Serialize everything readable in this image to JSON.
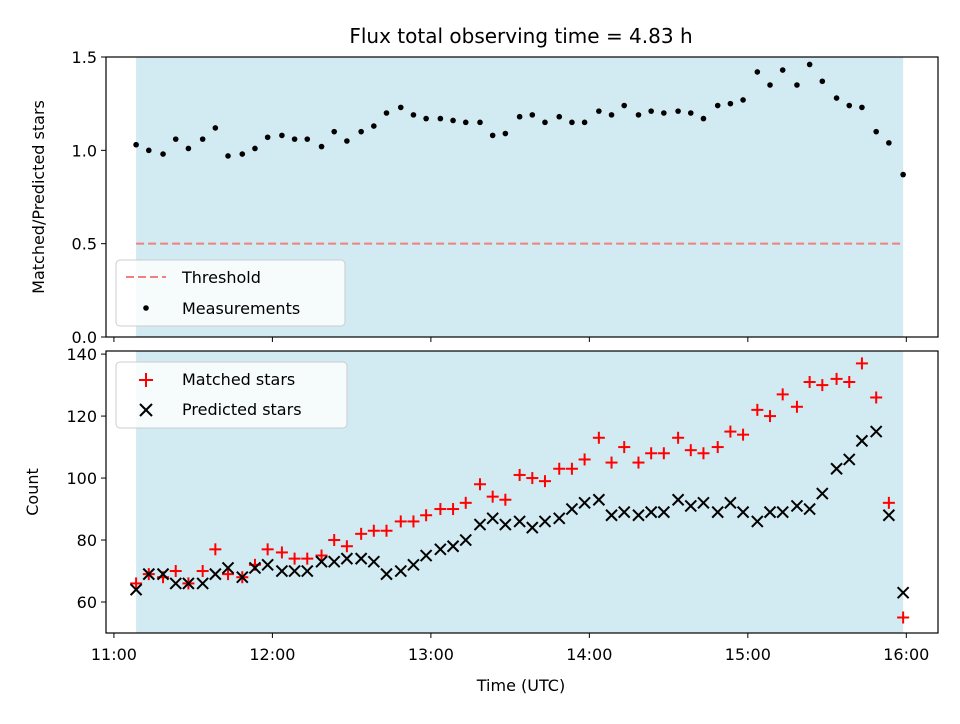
{
  "chart_data": [
    {
      "type": "scatter",
      "title": "Flux total observing time = 4.83 h",
      "ylabel": "Matched/Predicted stars",
      "xlabel": "",
      "ylim": [
        0,
        1.5
      ],
      "yticks": [
        0.0,
        0.5,
        1.0,
        1.5
      ],
      "ytick_labels": [
        "0.0",
        "0.5",
        "1.0",
        "1.5"
      ],
      "xlim_hours": [
        10.95,
        16.2
      ],
      "shaded_span_hours": [
        11.14,
        15.98
      ],
      "threshold": 0.5,
      "legend": {
        "placement": "lower-left",
        "entries": [
          "Threshold",
          "Measurements"
        ]
      },
      "colors": {
        "threshold": "#f08080",
        "measurements": "#000000",
        "span": "#add8e6"
      },
      "series": [
        {
          "name": "Measurements",
          "x": [
            11.14,
            11.22,
            11.31,
            11.39,
            11.47,
            11.56,
            11.64,
            11.72,
            11.81,
            11.89,
            11.97,
            12.06,
            12.14,
            12.22,
            12.31,
            12.39,
            12.47,
            12.56,
            12.64,
            12.72,
            12.81,
            12.89,
            12.97,
            13.06,
            13.14,
            13.22,
            13.31,
            13.39,
            13.47,
            13.56,
            13.64,
            13.72,
            13.81,
            13.89,
            13.97,
            14.06,
            14.14,
            14.22,
            14.31,
            14.39,
            14.47,
            14.56,
            14.64,
            14.72,
            14.81,
            14.89,
            14.97,
            15.06,
            15.14,
            15.22,
            15.31,
            15.39,
            15.47,
            15.56,
            15.64,
            15.72,
            15.81,
            15.89,
            15.98
          ],
          "y": [
            1.03,
            1.0,
            0.98,
            1.06,
            1.01,
            1.06,
            1.12,
            0.97,
            0.98,
            1.01,
            1.07,
            1.08,
            1.06,
            1.06,
            1.02,
            1.1,
            1.05,
            1.1,
            1.13,
            1.2,
            1.23,
            1.19,
            1.17,
            1.17,
            1.16,
            1.15,
            1.15,
            1.08,
            1.09,
            1.18,
            1.19,
            1.15,
            1.18,
            1.15,
            1.15,
            1.21,
            1.19,
            1.24,
            1.19,
            1.21,
            1.2,
            1.21,
            1.2,
            1.17,
            1.24,
            1.25,
            1.27,
            1.42,
            1.35,
            1.43,
            1.35,
            1.46,
            1.37,
            1.28,
            1.24,
            1.23,
            1.1,
            1.04,
            0.87
          ]
        }
      ]
    },
    {
      "type": "scatter",
      "title": "",
      "ylabel": "Count",
      "xlabel": "Time (UTC)",
      "ylim": [
        50,
        141
      ],
      "yticks": [
        60,
        80,
        100,
        120,
        140
      ],
      "ytick_labels": [
        "60",
        "80",
        "100",
        "120",
        "140"
      ],
      "xlim_hours": [
        10.95,
        16.2
      ],
      "xticks_hours": [
        11,
        12,
        13,
        14,
        15,
        16
      ],
      "xtick_labels": [
        "11:00",
        "12:00",
        "13:00",
        "14:00",
        "15:00",
        "16:00"
      ],
      "shaded_span_hours": [
        11.14,
        15.98
      ],
      "legend": {
        "placement": "upper-left",
        "entries": [
          "Matched stars",
          "Predicted stars"
        ]
      },
      "colors": {
        "matched": "#ff0000",
        "predicted": "#000000",
        "span": "#add8e6"
      },
      "series": [
        {
          "name": "Matched stars",
          "marker": "plus",
          "x": [
            11.14,
            11.22,
            11.31,
            11.39,
            11.47,
            11.56,
            11.64,
            11.72,
            11.81,
            11.89,
            11.97,
            12.06,
            12.14,
            12.22,
            12.31,
            12.39,
            12.47,
            12.56,
            12.64,
            12.72,
            12.81,
            12.89,
            12.97,
            13.06,
            13.14,
            13.22,
            13.31,
            13.39,
            13.47,
            13.56,
            13.64,
            13.72,
            13.81,
            13.89,
            13.97,
            14.06,
            14.14,
            14.22,
            14.31,
            14.39,
            14.47,
            14.56,
            14.64,
            14.72,
            14.81,
            14.89,
            14.97,
            15.06,
            15.14,
            15.22,
            15.31,
            15.39,
            15.47,
            15.56,
            15.64,
            15.72,
            15.81,
            15.89,
            15.98
          ],
          "y": [
            66,
            69,
            68,
            70,
            66,
            70,
            77,
            69,
            68,
            72,
            77,
            76,
            74,
            74,
            75,
            80,
            78,
            82,
            83,
            83,
            86,
            86,
            88,
            90,
            90,
            92,
            98,
            94,
            93,
            101,
            100,
            99,
            103,
            103,
            106,
            113,
            105,
            110,
            105,
            108,
            108,
            113,
            109,
            108,
            110,
            115,
            114,
            122,
            120,
            127,
            123,
            131,
            130,
            132,
            131,
            137,
            126,
            92,
            55
          ]
        },
        {
          "name": "Predicted stars",
          "marker": "x",
          "x": [
            11.14,
            11.22,
            11.31,
            11.39,
            11.47,
            11.56,
            11.64,
            11.72,
            11.81,
            11.89,
            11.97,
            12.06,
            12.14,
            12.22,
            12.31,
            12.39,
            12.47,
            12.56,
            12.64,
            12.72,
            12.81,
            12.89,
            12.97,
            13.06,
            13.14,
            13.22,
            13.31,
            13.39,
            13.47,
            13.56,
            13.64,
            13.72,
            13.81,
            13.89,
            13.97,
            14.06,
            14.14,
            14.22,
            14.31,
            14.39,
            14.47,
            14.56,
            14.64,
            14.72,
            14.81,
            14.89,
            14.97,
            15.06,
            15.14,
            15.22,
            15.31,
            15.39,
            15.47,
            15.56,
            15.64,
            15.72,
            15.81,
            15.89,
            15.98
          ],
          "y": [
            64,
            69,
            69,
            66,
            66,
            66,
            69,
            71,
            68,
            71,
            72,
            70,
            70,
            70,
            73,
            73,
            74,
            74,
            73,
            69,
            70,
            72,
            75,
            77,
            78,
            80,
            85,
            87,
            85,
            86,
            84,
            86,
            87,
            90,
            92,
            93,
            88,
            89,
            88,
            89,
            89,
            93,
            91,
            92,
            89,
            92,
            89,
            86,
            89,
            89,
            91,
            90,
            95,
            103,
            106,
            112,
            115,
            88,
            63
          ]
        }
      ]
    }
  ]
}
